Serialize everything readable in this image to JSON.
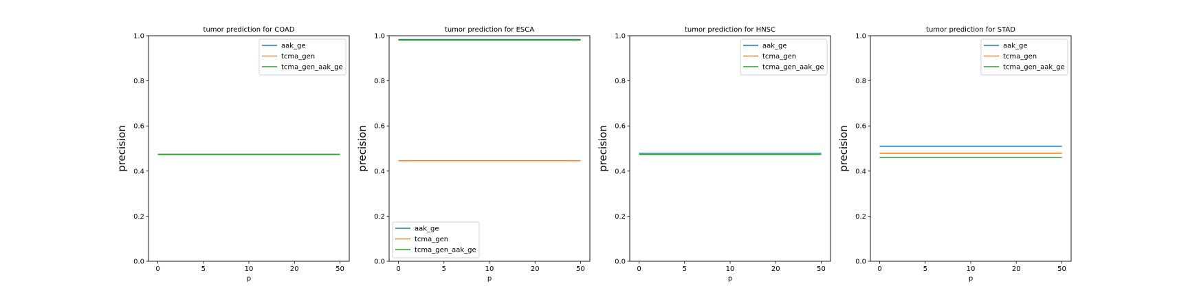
{
  "colors": {
    "aak_ge": "#1f77b4",
    "tcma_gen": "#ff7f0e",
    "tcma_gen_aak_ge": "#2ca02c"
  },
  "chart_data": [
    {
      "type": "line",
      "title": "tumor prediction for COAD",
      "xlabel": "p",
      "ylabel": "precision",
      "x_ticks": [
        "0",
        "5",
        "10",
        "20",
        "50"
      ],
      "ylim": [
        0,
        1
      ],
      "y_ticks": [
        "0.0",
        "0.2",
        "0.4",
        "0.6",
        "0.8",
        "1.0"
      ],
      "legend_position": "top-right",
      "series": [
        {
          "name": "aak_ge",
          "values": [
            0.474,
            0.474,
            0.474,
            0.474,
            0.474
          ]
        },
        {
          "name": "tcma_gen",
          "values": [
            0.474,
            0.474,
            0.474,
            0.474,
            0.474
          ]
        },
        {
          "name": "tcma_gen_aak_ge",
          "values": [
            0.474,
            0.474,
            0.474,
            0.474,
            0.474
          ]
        }
      ]
    },
    {
      "type": "line",
      "title": "tumor prediction for ESCA",
      "xlabel": "p",
      "ylabel": "precision",
      "x_ticks": [
        "0",
        "5",
        "10",
        "20",
        "50"
      ],
      "ylim": [
        0,
        1
      ],
      "y_ticks": [
        "0.0",
        "0.2",
        "0.4",
        "0.6",
        "0.8",
        "1.0"
      ],
      "legend_position": "bottom-left",
      "series": [
        {
          "name": "aak_ge",
          "values": [
            0.983,
            0.983,
            0.983,
            0.983,
            0.983
          ]
        },
        {
          "name": "tcma_gen",
          "values": [
            0.446,
            0.446,
            0.446,
            0.446,
            0.446
          ]
        },
        {
          "name": "tcma_gen_aak_ge",
          "values": [
            0.981,
            0.981,
            0.981,
            0.981,
            0.981
          ]
        }
      ]
    },
    {
      "type": "line",
      "title": "tumor prediction for HNSC",
      "xlabel": "p",
      "ylabel": "precision",
      "x_ticks": [
        "0",
        "5",
        "10",
        "20",
        "50"
      ],
      "ylim": [
        0,
        1
      ],
      "y_ticks": [
        "0.0",
        "0.2",
        "0.4",
        "0.6",
        "0.8",
        "1.0"
      ],
      "legend_position": "top-right",
      "series": [
        {
          "name": "aak_ge",
          "values": [
            0.478,
            0.478,
            0.478,
            0.478,
            0.478
          ]
        },
        {
          "name": "tcma_gen",
          "values": [
            0.476,
            0.476,
            0.476,
            0.476,
            0.476
          ]
        },
        {
          "name": "tcma_gen_aak_ge",
          "values": [
            0.474,
            0.474,
            0.474,
            0.474,
            0.474
          ]
        }
      ]
    },
    {
      "type": "line",
      "title": "tumor prediction for STAD",
      "xlabel": "p",
      "ylabel": "precision",
      "x_ticks": [
        "0",
        "5",
        "10",
        "20",
        "50"
      ],
      "ylim": [
        0,
        1
      ],
      "y_ticks": [
        "0.0",
        "0.2",
        "0.4",
        "0.6",
        "0.8",
        "1.0"
      ],
      "legend_position": "top-right",
      "series": [
        {
          "name": "aak_ge",
          "values": [
            0.51,
            0.51,
            0.51,
            0.51,
            0.51
          ]
        },
        {
          "name": "tcma_gen",
          "values": [
            0.479,
            0.479,
            0.479,
            0.479,
            0.479
          ]
        },
        {
          "name": "tcma_gen_aak_ge",
          "values": [
            0.46,
            0.46,
            0.46,
            0.46,
            0.46
          ]
        }
      ]
    }
  ]
}
